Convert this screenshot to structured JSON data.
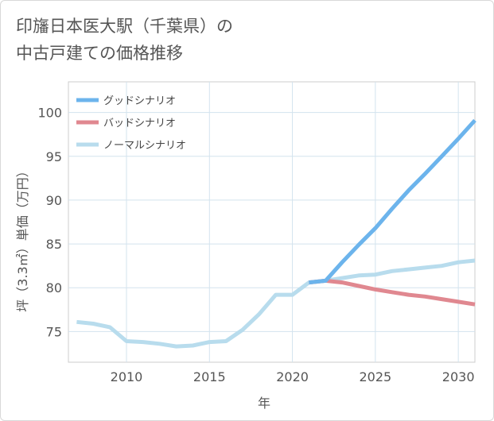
{
  "title": {
    "line1": "印旛日本医大駅（千葉県）の",
    "line2": "中古戸建ての価格推移"
  },
  "chart_data": {
    "type": "line",
    "xlabel": "年",
    "ylabel": "坪（3.3㎡）単価（万円）",
    "xlim": [
      2006.5,
      2031
    ],
    "ylim": [
      71.5,
      103.5
    ],
    "x_ticks": [
      2010,
      2015,
      2020,
      2025,
      2030
    ],
    "y_ticks": [
      75,
      80,
      85,
      90,
      95,
      100
    ],
    "grid": true,
    "legend_position": "top-left",
    "series": [
      {
        "name": "グッドシナリオ",
        "color": "#6cb4ec",
        "x": [
          2021,
          2022,
          2023,
          2024,
          2025,
          2026,
          2027,
          2028,
          2029,
          2030,
          2031
        ],
        "values": [
          80.6,
          80.8,
          82.9,
          84.9,
          86.8,
          89.0,
          91.1,
          93.0,
          95.0,
          97.0,
          99.1
        ]
      },
      {
        "name": "バッドシナリオ",
        "color": "#e08890",
        "x": [
          2021,
          2022,
          2023,
          2024,
          2025,
          2026,
          2027,
          2028,
          2029,
          2030,
          2031
        ],
        "values": [
          80.6,
          80.8,
          80.6,
          80.2,
          79.8,
          79.5,
          79.2,
          79.0,
          78.7,
          78.4,
          78.1
        ]
      },
      {
        "name": "ノーマルシナリオ",
        "color": "#b8dced",
        "x": [
          2007,
          2008,
          2009,
          2010,
          2011,
          2012,
          2013,
          2014,
          2015,
          2016,
          2017,
          2018,
          2019,
          2020,
          2021,
          2022,
          2023,
          2024,
          2025,
          2026,
          2027,
          2028,
          2029,
          2030,
          2031
        ],
        "values": [
          76.1,
          75.9,
          75.5,
          73.9,
          73.8,
          73.6,
          73.3,
          73.4,
          73.8,
          73.9,
          75.2,
          77.0,
          79.2,
          79.2,
          80.6,
          80.8,
          81.1,
          81.4,
          81.5,
          81.9,
          82.1,
          82.3,
          82.5,
          82.9,
          83.1
        ]
      }
    ]
  }
}
